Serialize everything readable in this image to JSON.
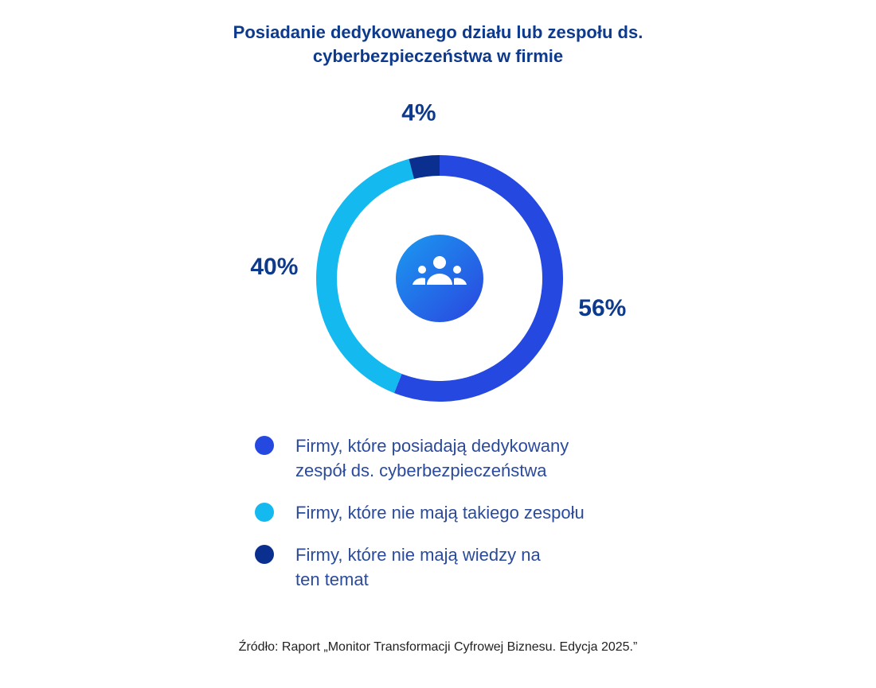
{
  "chart_data": {
    "type": "pie",
    "donut": true,
    "title": "Posiadanie dedykowanego działu lub zespołu ds. cyberbezpieczeństwa w firmie",
    "categories": [
      "Firmy, które posiadają dedykowany zespół ds. cyberbezpieczeństwa",
      "Firmy, które nie mają takiego zespołu",
      "Firmy, które nie mają wiedzy na ten temat"
    ],
    "values": [
      56,
      40,
      4
    ],
    "value_labels": [
      "56%",
      "40%",
      "4%"
    ],
    "colors": [
      "#2548e0",
      "#14b9f0",
      "#0b2f8e"
    ],
    "source": "Źródło: Raport „Monitor Transformacji Cyfrowej Biznesu. Edycja 2025.”"
  }
}
